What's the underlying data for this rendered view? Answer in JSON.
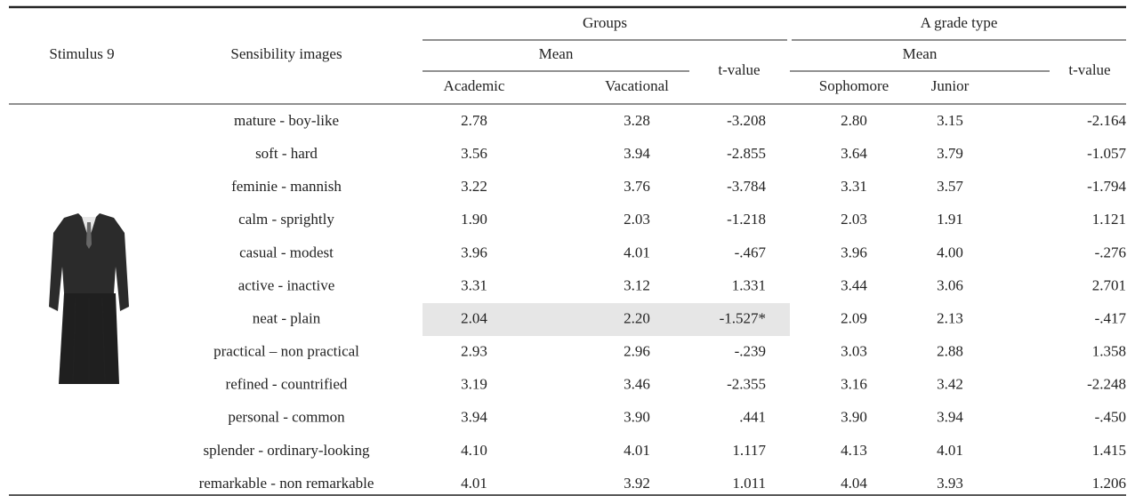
{
  "header": {
    "stimulus": "Stimulus 9",
    "images": "Sensibility images",
    "groups": "Groups",
    "grade": "A grade type",
    "mean1": "Mean",
    "mean2": "Mean",
    "tvalue1": "t-value",
    "tvalue2": "t-value",
    "cols": [
      "Academic",
      "Vacational",
      "Sophomore",
      "Junior"
    ]
  },
  "rows": [
    {
      "label": "mature - boy-like",
      "cells": [
        "2.78",
        "3.28",
        "-3.208",
        "2.80",
        "3.15",
        "-2.164"
      ]
    },
    {
      "label": "soft - hard",
      "cells": [
        "3.56",
        "3.94",
        "-2.855",
        "3.64",
        "3.79",
        "-1.057"
      ]
    },
    {
      "label": "feminie - mannish",
      "cells": [
        "3.22",
        "3.76",
        "-3.784",
        "3.31",
        "3.57",
        "-1.794"
      ]
    },
    {
      "label": "calm - sprightly",
      "cells": [
        "1.90",
        "2.03",
        "-1.218",
        "2.03",
        "1.91",
        "1.121"
      ]
    },
    {
      "label": "casual - modest",
      "cells": [
        "3.96",
        "4.01",
        "-.467",
        "3.96",
        "4.00",
        "-.276"
      ]
    },
    {
      "label": "active - inactive",
      "cells": [
        "3.31",
        "3.12",
        "1.331",
        "3.44",
        "3.06",
        "2.701"
      ]
    },
    {
      "label": "neat - plain",
      "cells": [
        "2.04",
        "2.20",
        "-1.527*",
        "2.09",
        "2.13",
        "-.417"
      ]
    },
    {
      "label": "practical – non practical",
      "cells": [
        "2.93",
        "2.96",
        "-.239",
        "3.03",
        "2.88",
        "1.358"
      ]
    },
    {
      "label": "refined - countrified",
      "cells": [
        "3.19",
        "3.46",
        "-2.355",
        "3.16",
        "3.42",
        "-2.248"
      ]
    },
    {
      "label": "personal - common",
      "cells": [
        "3.94",
        "3.90",
        ".441",
        "3.90",
        "3.94",
        "-.450"
      ]
    },
    {
      "label": "splender - ordinary-looking",
      "cells": [
        "4.10",
        "4.01",
        "1.117",
        "4.13",
        "4.01",
        "1.415"
      ]
    },
    {
      "label": "remarkable - non remarkable",
      "cells": [
        "4.01",
        "3.92",
        "1.011",
        "4.04",
        "3.93",
        "1.206"
      ]
    }
  ]
}
